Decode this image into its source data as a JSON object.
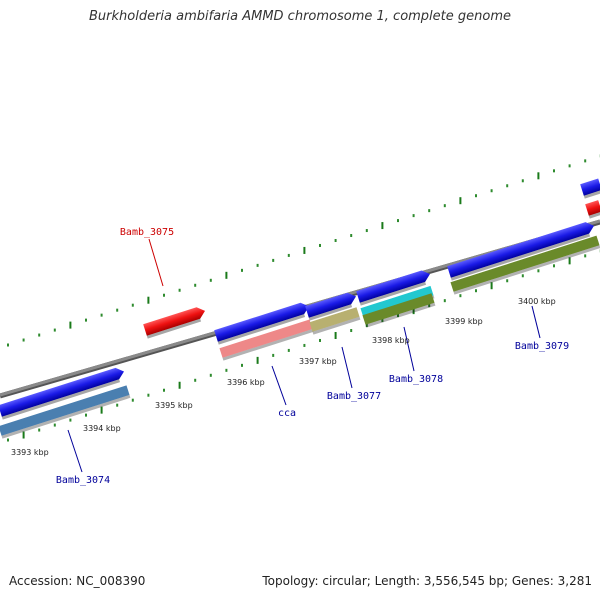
{
  "title": "Burkholderia ambifaria AMMD chromosome 1, complete genome",
  "footer": {
    "accession": "Accession: NC_008390",
    "stats": "Topology: circular; Length: 3,556,545 bp; Genes: 3,281"
  },
  "colors": {
    "backbone": "#8a8a8a",
    "forward_gene": "#1a1ae6",
    "reverse_gene": "#ee1111",
    "tick_major": "#1a7a1a",
    "tick_minor": "#2e8b2e",
    "label_blue": "#00009a",
    "label_red": "#cc0000"
  },
  "scale_labels": [
    "3393 kbp",
    "3394 kbp",
    "3395 kbp",
    "3396 kbp",
    "3397 kbp",
    "3398 kbp",
    "3399 kbp",
    "3400 kbp"
  ],
  "genes": [
    {
      "name": "Bamb_3074",
      "strand": "forward",
      "color": "#1a1ae6"
    },
    {
      "name": "Bamb_3075",
      "strand": "reverse",
      "color": "#ee1111"
    },
    {
      "name": "cca",
      "strand": "forward",
      "color": "#1a1ae6"
    },
    {
      "name": "Bamb_3077",
      "strand": "forward",
      "color": "#1a1ae6"
    },
    {
      "name": "Bamb_3078",
      "strand": "forward",
      "color": "#1a1ae6"
    },
    {
      "name": "Bamb_3079",
      "strand": "forward",
      "color": "#1a1ae6"
    }
  ],
  "gene_labels": [
    {
      "text": "Bamb_3074",
      "color": "#00009a"
    },
    {
      "text": "Bamb_3075",
      "color": "#cc0000"
    },
    {
      "text": "cca",
      "color": "#00009a"
    },
    {
      "text": "Bamb_3077",
      "color": "#00009a"
    },
    {
      "text": "Bamb_3078",
      "color": "#00009a"
    },
    {
      "text": "Bamb_3079",
      "color": "#00009a"
    }
  ]
}
